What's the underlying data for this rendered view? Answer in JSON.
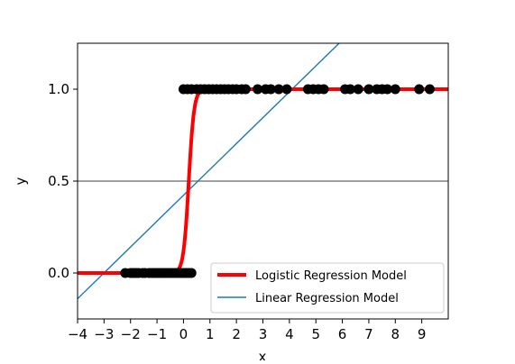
{
  "chart_data": {
    "type": "scatter",
    "title": "",
    "xlabel": "x",
    "ylabel": "y",
    "xlim": [
      -4,
      10
    ],
    "ylim": [
      -0.25,
      1.25
    ],
    "x_ticks": [
      -4,
      -3,
      -2,
      -1,
      0,
      1,
      2,
      3,
      4,
      5,
      6,
      7,
      8,
      9
    ],
    "x_tick_labels": [
      "−4",
      "−3",
      "−2",
      "−1",
      "0",
      "1",
      "2",
      "3",
      "4",
      "5",
      "6",
      "7",
      "8",
      "9"
    ],
    "y_ticks": [
      0.0,
      0.5,
      1.0
    ],
    "y_tick_labels": [
      "0.0",
      "0.5",
      "1.0"
    ],
    "grid": false,
    "legend_position": "lower-right",
    "reference_line": {
      "y": 0.5,
      "color": "#808080"
    },
    "series": [
      {
        "name": "",
        "kind": "points",
        "color": "#000000",
        "x": [
          -2.2,
          -2.0,
          -1.9,
          -1.8,
          -1.7,
          -1.55,
          -1.45,
          -1.3,
          -1.2,
          -1.1,
          -1.0,
          -0.9,
          -0.8,
          -0.7,
          -0.6,
          -0.5,
          -0.4,
          -0.3,
          -0.2,
          -0.1,
          0.0,
          0.1,
          0.2,
          0.3
        ],
        "y": [
          0,
          0,
          0,
          0,
          0,
          0,
          0,
          0,
          0,
          0,
          0,
          0,
          0,
          0,
          0,
          0,
          0,
          0,
          0,
          0,
          0,
          0,
          0,
          0
        ]
      },
      {
        "name": "",
        "kind": "points",
        "color": "#000000",
        "x": [
          0.0,
          0.15,
          0.3,
          0.5,
          0.65,
          0.8,
          0.95,
          1.1,
          1.25,
          1.4,
          1.55,
          1.7,
          1.85,
          2.0,
          2.2,
          2.35,
          2.8,
          3.1,
          3.3,
          3.6,
          3.9,
          4.7,
          4.9,
          5.1,
          5.3,
          6.1,
          6.3,
          6.6,
          7.0,
          7.3,
          7.5,
          7.7,
          8.0,
          8.9,
          9.3
        ],
        "y": [
          1,
          1,
          1,
          1,
          1,
          1,
          1,
          1,
          1,
          1,
          1,
          1,
          1,
          1,
          1,
          1,
          1,
          1,
          1,
          1,
          1,
          1,
          1,
          1,
          1,
          1,
          1,
          1,
          1,
          1,
          1,
          1,
          1,
          1,
          1
        ]
      },
      {
        "name": "Logistic Regression Model",
        "kind": "line",
        "function": "logistic",
        "center": 0.2,
        "steepness": 10,
        "x_range": [
          -4,
          10
        ],
        "color": "#ff0000"
      },
      {
        "name": "Linear Regression Model",
        "kind": "line",
        "function": "linear",
        "x": [
          -4,
          10
        ],
        "y": [
          -0.14,
          1.83
        ],
        "color": "#1f77b4"
      }
    ]
  }
}
